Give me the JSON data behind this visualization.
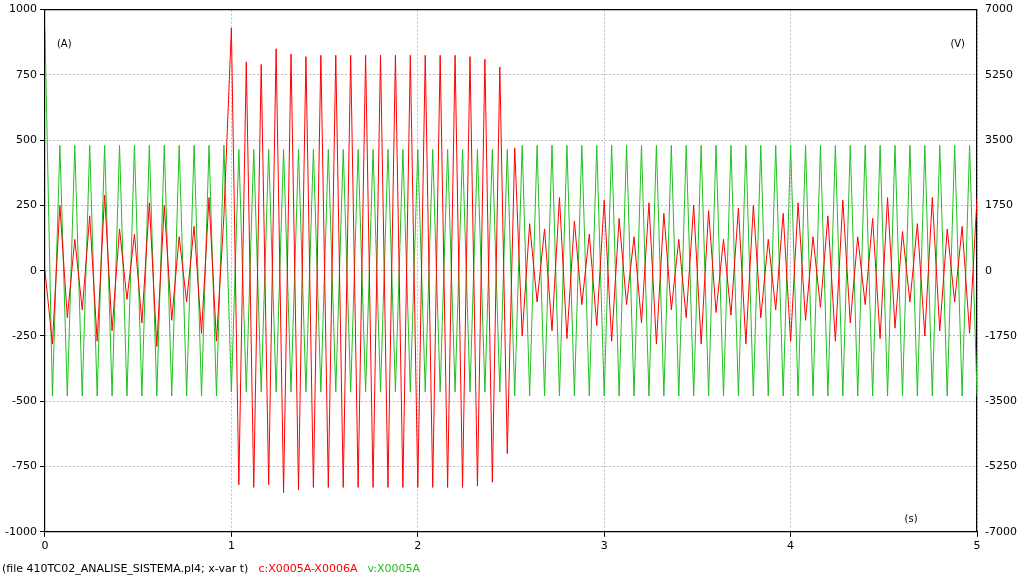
{
  "chart_data": {
    "type": "line",
    "xlabel": "(s)",
    "ylabel": "(A)",
    "y2label": "(V)",
    "annotations": [
      "(file 410TC02_ANALISE_SISTEMA.pl4; x-var t)"
    ],
    "x": [
      0,
      0.04,
      0.08,
      0.12,
      0.16,
      0.2,
      0.24,
      0.28,
      0.32,
      0.36,
      0.4,
      0.44,
      0.48,
      0.52,
      0.56,
      0.6,
      0.64,
      0.68,
      0.72,
      0.76,
      0.8,
      0.84,
      0.88,
      0.92,
      0.96,
      1,
      1.04,
      1.08,
      1.12,
      1.16,
      1.2,
      1.24,
      1.28,
      1.32,
      1.36,
      1.4,
      1.44,
      1.48,
      1.52,
      1.56,
      1.6,
      1.64,
      1.68,
      1.72,
      1.76,
      1.8,
      1.84,
      1.88,
      1.92,
      1.96,
      2,
      2.04,
      2.08,
      2.12,
      2.16,
      2.2,
      2.24,
      2.28,
      2.32,
      2.36,
      2.4,
      2.44,
      2.48,
      2.52,
      2.56,
      2.6,
      2.64,
      2.68,
      2.72,
      2.76,
      2.8,
      2.84,
      2.88,
      2.92,
      2.96,
      3,
      3.04,
      3.08,
      3.12,
      3.16,
      3.2,
      3.24,
      3.28,
      3.32,
      3.36,
      3.4,
      3.44,
      3.48,
      3.52,
      3.56,
      3.6,
      3.64,
      3.68,
      3.72,
      3.76,
      3.8,
      3.84,
      3.88,
      3.92,
      3.96,
      4,
      4.04,
      4.08,
      4.12,
      4.16,
      4.2,
      4.24,
      4.28,
      4.32,
      4.36,
      4.4,
      4.44,
      4.48,
      4.52,
      4.56,
      4.6,
      4.64,
      4.68,
      4.72,
      4.76,
      4.8,
      4.84,
      4.88,
      4.92,
      4.96,
      5
    ],
    "series": [
      {
        "name": "c:X0005A-X0006A",
        "color": "#ff0000",
        "values": [
          0,
          -280,
          250,
          -180,
          120,
          -150,
          210,
          -270,
          290,
          -230,
          160,
          -110,
          140,
          -200,
          260,
          -290,
          250,
          -190,
          130,
          -120,
          170,
          -240,
          280,
          -270,
          210,
          930,
          -820,
          800,
          -830,
          790,
          -820,
          850,
          -850,
          830,
          -840,
          820,
          -830,
          825,
          -830,
          825,
          -830,
          825,
          -830,
          825,
          -830,
          825,
          -830,
          825,
          -830,
          825,
          -830,
          825,
          -830,
          825,
          -830,
          825,
          -830,
          820,
          -825,
          810,
          -810,
          780,
          -700,
          470,
          -250,
          180,
          -120,
          160,
          -230,
          280,
          -260,
          190,
          -130,
          140,
          -210,
          270,
          -270,
          200,
          -130,
          130,
          -200,
          260,
          -280,
          220,
          -150,
          120,
          -180,
          250,
          -280,
          230,
          -160,
          120,
          -170,
          240,
          -280,
          250,
          -180,
          120,
          -150,
          220,
          -270,
          260,
          -190,
          130,
          -140,
          210,
          -270,
          270,
          -200,
          130,
          -130,
          200,
          -260,
          280,
          -220,
          150,
          -120,
          180,
          -250,
          280,
          -230,
          160,
          -120,
          170,
          -240,
          280
        ]
      },
      {
        "name": "v:X0005A",
        "color": "#20c020",
        "axis": "y2",
        "values": [
          6440,
          -3360,
          3360,
          -3360,
          3360,
          -3360,
          3360,
          -3360,
          3360,
          -3360,
          3360,
          -3360,
          3360,
          -3360,
          3360,
          -3360,
          3360,
          -3360,
          3360,
          -3360,
          3360,
          -3360,
          3360,
          -3360,
          3360,
          -3250,
          3250,
          -3250,
          3250,
          -3250,
          3250,
          -3250,
          3250,
          -3250,
          3250,
          -3250,
          3250,
          -3250,
          3250,
          -3250,
          3250,
          -3250,
          3250,
          -3250,
          3250,
          -3250,
          3250,
          -3250,
          3250,
          -3250,
          3250,
          -3250,
          3250,
          -3250,
          3250,
          -3250,
          3250,
          -3250,
          3250,
          -3250,
          3250,
          -3250,
          3250,
          -3360,
          3360,
          -3360,
          3360,
          -3360,
          3360,
          -3360,
          3360,
          -3360,
          3360,
          -3360,
          3360,
          -3360,
          3360,
          -3360,
          3360,
          -3360,
          3360,
          -3360,
          3360,
          -3360,
          3360,
          -3360,
          3360,
          -3360,
          3360,
          -3360,
          3360,
          -3360,
          3360,
          -3360,
          3360,
          -3360,
          3360,
          -3360,
          3360,
          -3360,
          3360,
          -3360,
          3360,
          -3360,
          3360,
          -3360,
          3360,
          -3360,
          3360,
          -3360,
          3360,
          -3360,
          3360,
          -3360,
          3360,
          -3360,
          3360,
          -3360,
          3360,
          -3360,
          3360,
          -3360,
          3360,
          -3360,
          3360,
          -3360
        ]
      }
    ],
    "xlim": [
      0,
      5
    ],
    "xticks": [
      0,
      1,
      2,
      3,
      4,
      5
    ],
    "ylim": [
      -1000,
      1000
    ],
    "yticks": [
      -1000,
      -750,
      -500,
      -250,
      0,
      250,
      500,
      750,
      1000
    ],
    "y2lim": [
      -7000,
      7000
    ],
    "y2ticks": [
      -7000,
      -5250,
      -3500,
      -1750,
      0,
      1750,
      3500,
      5250,
      7000
    ],
    "grid": true,
    "legend": "bottom"
  }
}
